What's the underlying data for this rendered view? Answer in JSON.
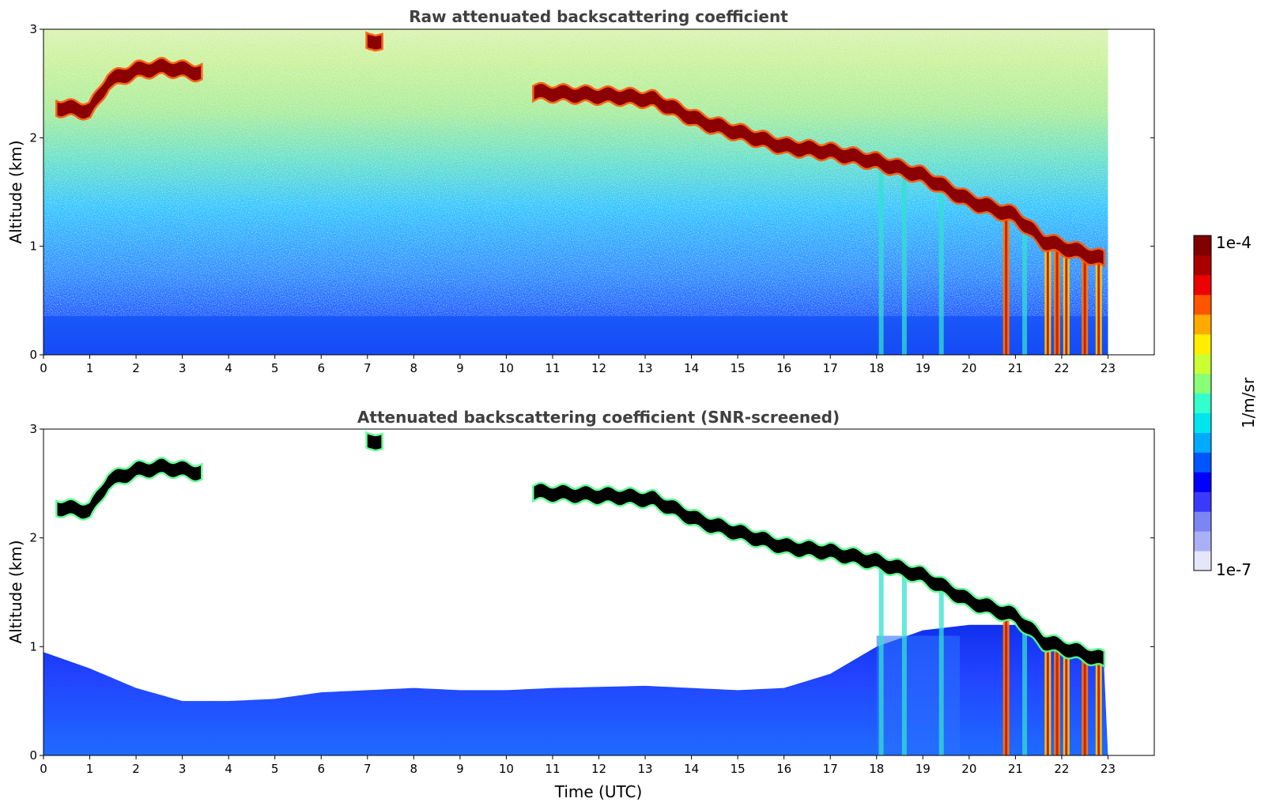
{
  "chart_data": [
    {
      "type": "heatmap",
      "title": "Raw attenuated backscattering coefficient",
      "xlabel": "",
      "ylabel": "Altitude (km)",
      "xlim": [
        0,
        24
      ],
      "ylim": [
        0,
        3
      ],
      "x_ticks": [
        "0",
        "1",
        "2",
        "3",
        "4",
        "5",
        "6",
        "7",
        "8",
        "9",
        "10",
        "11",
        "12",
        "13",
        "14",
        "15",
        "16",
        "17",
        "18",
        "19",
        "20",
        "21",
        "22",
        "23"
      ],
      "y_ticks": [
        "0",
        "1",
        "2",
        "3"
      ],
      "data_extent_x": [
        0,
        23
      ],
      "colormap": "jet",
      "colorscale": "log",
      "vmin": "1e-7",
      "vmax": "1e-4",
      "features": {
        "cloud_layer_altitude_km": [
          {
            "t": 0.3,
            "z": 2.28
          },
          {
            "t": 1.0,
            "z": 2.25
          },
          {
            "t": 1.4,
            "z": 2.52
          },
          {
            "t": 2.0,
            "z": 2.62
          },
          {
            "t": 2.6,
            "z": 2.65
          },
          {
            "t": 3.4,
            "z": 2.6
          },
          {
            "t": 7.1,
            "z": 2.9
          },
          {
            "t": 10.6,
            "z": 2.42
          },
          {
            "t": 11.5,
            "z": 2.4
          },
          {
            "t": 12.5,
            "z": 2.38
          },
          {
            "t": 13.2,
            "z": 2.35
          },
          {
            "t": 14.2,
            "z": 2.15
          },
          {
            "t": 15.0,
            "z": 2.05
          },
          {
            "t": 16.0,
            "z": 1.92
          },
          {
            "t": 17.0,
            "z": 1.87
          },
          {
            "t": 18.0,
            "z": 1.78
          },
          {
            "t": 19.0,
            "z": 1.65
          },
          {
            "t": 20.0,
            "z": 1.42
          },
          {
            "t": 21.0,
            "z": 1.28
          },
          {
            "t": 21.6,
            "z": 1.05
          },
          {
            "t": 22.2,
            "z": 0.97
          },
          {
            "t": 22.9,
            "z": 0.88
          }
        ],
        "precip_streaks_utc": [
          20.8,
          21.7,
          21.9,
          22.1,
          22.5,
          22.8
        ],
        "aerosol_streaks_utc": [
          18.1,
          18.6,
          19.4,
          21.2
        ]
      }
    },
    {
      "type": "heatmap",
      "title": "Attenuated backscattering coefficient (SNR-screened)",
      "xlabel": "Time (UTC)",
      "ylabel": "Altitude (km)",
      "xlim": [
        0,
        24
      ],
      "ylim": [
        0,
        3
      ],
      "x_ticks": [
        "0",
        "1",
        "2",
        "3",
        "4",
        "5",
        "6",
        "7",
        "8",
        "9",
        "10",
        "11",
        "12",
        "13",
        "14",
        "15",
        "16",
        "17",
        "18",
        "19",
        "20",
        "21",
        "22",
        "23"
      ],
      "y_ticks": [
        "0",
        "1",
        "2",
        "3"
      ],
      "data_extent_x": [
        0,
        23
      ],
      "colormap": "jet",
      "colorscale": "log",
      "vmin": "1e-7",
      "vmax": "1e-4",
      "over_color": "#000000",
      "features": {
        "boundary_layer_top_km": [
          {
            "t": 0,
            "z": 0.95
          },
          {
            "t": 1,
            "z": 0.8
          },
          {
            "t": 2,
            "z": 0.62
          },
          {
            "t": 3,
            "z": 0.5
          },
          {
            "t": 4,
            "z": 0.5
          },
          {
            "t": 5,
            "z": 0.52
          },
          {
            "t": 6,
            "z": 0.58
          },
          {
            "t": 7,
            "z": 0.6
          },
          {
            "t": 8,
            "z": 0.62
          },
          {
            "t": 9,
            "z": 0.6
          },
          {
            "t": 10,
            "z": 0.6
          },
          {
            "t": 11,
            "z": 0.62
          },
          {
            "t": 12,
            "z": 0.63
          },
          {
            "t": 13,
            "z": 0.64
          },
          {
            "t": 14,
            "z": 0.62
          },
          {
            "t": 15,
            "z": 0.6
          },
          {
            "t": 16,
            "z": 0.62
          },
          {
            "t": 17,
            "z": 0.75
          },
          {
            "t": 18,
            "z": 1.0
          },
          {
            "t": 19,
            "z": 1.15
          },
          {
            "t": 20,
            "z": 1.2
          },
          {
            "t": 21,
            "z": 1.2
          },
          {
            "t": 22,
            "z": 1.0
          },
          {
            "t": 23,
            "z": 0.95
          }
        ]
      }
    }
  ],
  "colorbar": {
    "label": "1/m/sr",
    "max_label": "1e-4",
    "min_label": "1e-7",
    "colors": [
      "#e6e6fa",
      "#aab0f5",
      "#7d85f2",
      "#3a3aff",
      "#0000ff",
      "#0055ff",
      "#00aaff",
      "#00e5ee",
      "#33ffcc",
      "#88ff77",
      "#ccff33",
      "#ffee00",
      "#ffaa00",
      "#ff5500",
      "#ee0000",
      "#aa0000",
      "#800000"
    ]
  }
}
